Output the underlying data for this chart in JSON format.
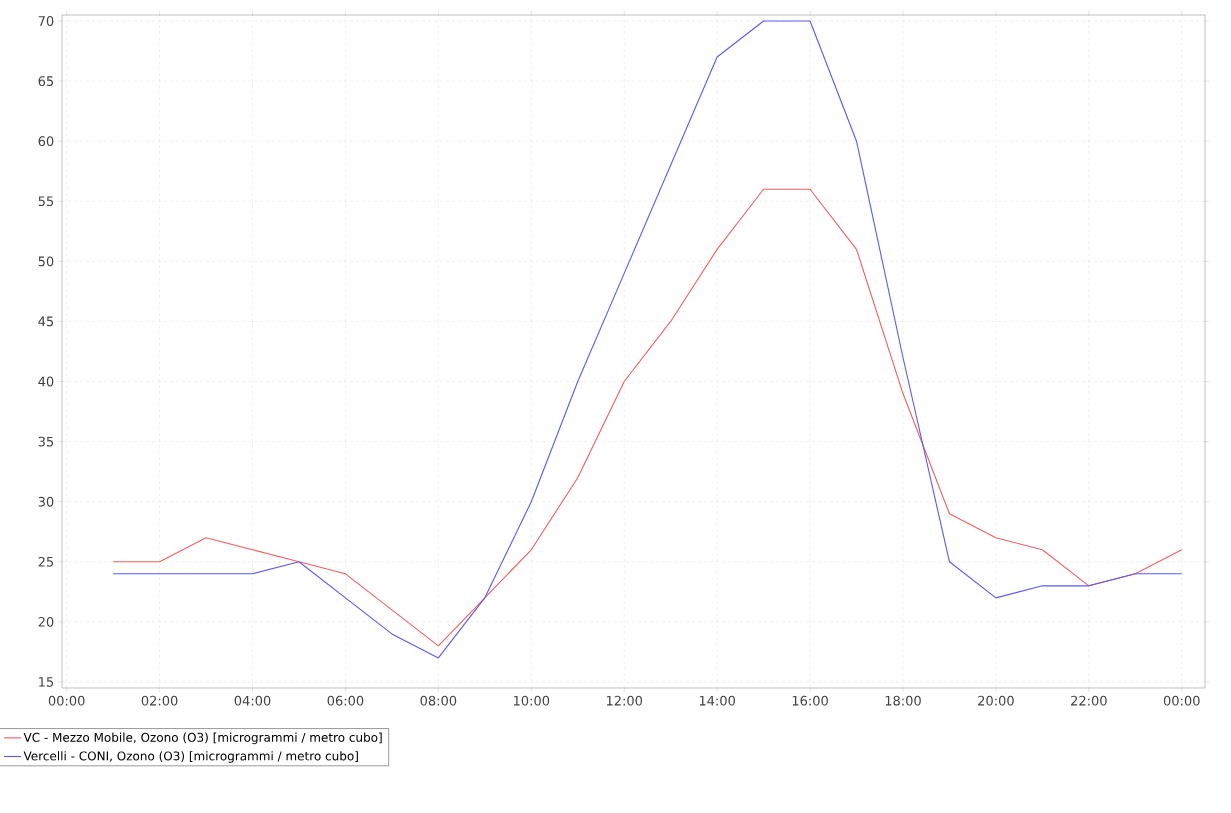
{
  "chart_data": {
    "type": "line",
    "x": [
      1,
      2,
      3,
      4,
      5,
      6,
      7,
      8,
      9,
      10,
      11,
      12,
      13,
      14,
      15,
      16,
      17,
      18,
      19,
      20,
      21,
      22,
      23,
      24
    ],
    "series": [
      {
        "name": "VC - Mezzo Mobile, Ozono (O3) [microgrammi / metro cubo]",
        "color": "#f25f5f",
        "values": [
          25,
          25,
          27,
          26,
          25,
          24,
          21,
          18,
          22,
          26,
          32,
          40,
          45,
          51,
          56,
          56,
          51,
          39,
          29,
          27,
          26,
          23,
          24,
          26
        ]
      },
      {
        "name": "Vercelli - CONI, Ozono (O3) [microgrammi / metro cubo]",
        "color": "#5a5af2",
        "values": [
          24,
          24,
          24,
          24,
          25,
          22,
          19,
          17,
          22,
          30,
          40,
          49,
          58,
          67,
          70,
          70,
          60,
          42,
          25,
          22,
          23,
          23,
          24,
          24
        ]
      }
    ],
    "xlim": [
      -0.1,
      24.5
    ],
    "ylim": [
      14.5,
      70.5
    ],
    "xticks": [
      {
        "value": 0,
        "label": "00:00"
      },
      {
        "value": 2,
        "label": "02:00"
      },
      {
        "value": 4,
        "label": "04:00"
      },
      {
        "value": 6,
        "label": "06:00"
      },
      {
        "value": 8,
        "label": "08:00"
      },
      {
        "value": 10,
        "label": "10:00"
      },
      {
        "value": 12,
        "label": "12:00"
      },
      {
        "value": 14,
        "label": "14:00"
      },
      {
        "value": 16,
        "label": "16:00"
      },
      {
        "value": 18,
        "label": "18:00"
      },
      {
        "value": 20,
        "label": "20:00"
      },
      {
        "value": 22,
        "label": "22:00"
      },
      {
        "value": 24,
        "label": "00:00"
      }
    ],
    "yticks": [
      15,
      20,
      25,
      30,
      35,
      40,
      45,
      50,
      55,
      60,
      65,
      70
    ],
    "grid": true,
    "legend": "bottom",
    "marker": "none",
    "line_style": "solid"
  }
}
